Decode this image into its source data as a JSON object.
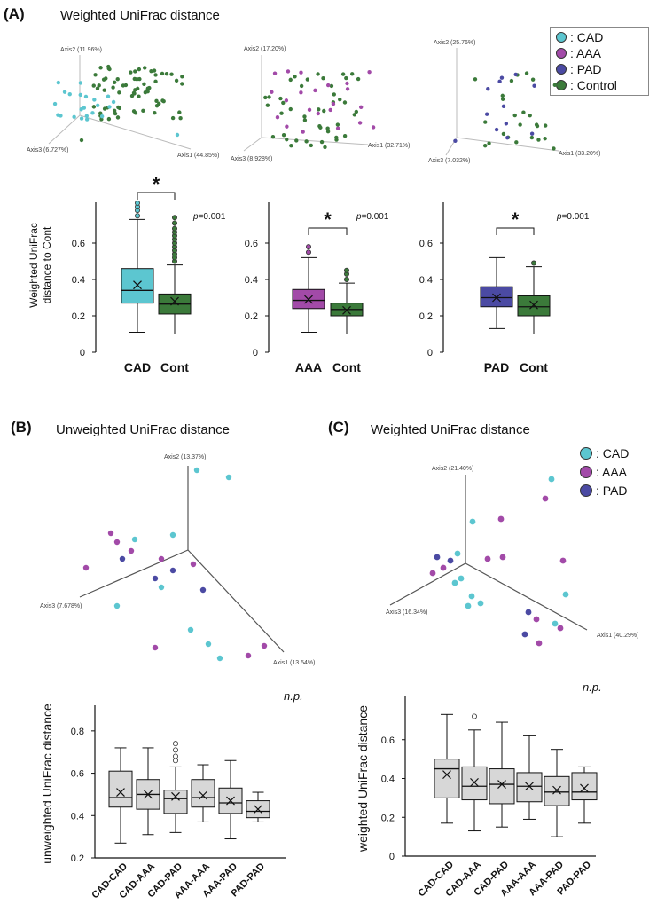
{
  "colors": {
    "CAD": "#5cc6d0",
    "AAA": "#a24aa8",
    "PAD": "#4b4aa3",
    "Control": "#3b7a3a",
    "gray": "#d7d7d7",
    "Cont": "#3b7a3a"
  },
  "panelA": {
    "letter": "(A)",
    "title": "Weighted UniFrac distance",
    "legend": [
      {
        "key": "CAD",
        "label": ": CAD"
      },
      {
        "key": "AAA",
        "label": ": AAA"
      },
      {
        "key": "PAD",
        "label": ": PAD"
      },
      {
        "key": "Control",
        "label": ": Control"
      }
    ],
    "pcoa": [
      {
        "axis1": "Axis1 (44.85%)",
        "axis2": "Axis2 (11.96%)",
        "axis3": "Axis3 (6.727%)"
      },
      {
        "axis1": "Axis1 (32.71%)",
        "axis2": "Axis2 (17.20%)",
        "axis3": "Axis3 (8.928%)"
      },
      {
        "axis1": "Axis1 (33.20%)",
        "axis2": "Axis2 (25.76%)",
        "axis3": "Axis3 (7.032%)"
      }
    ],
    "ylabel_line1": "Weighted UniFrac",
    "ylabel_line2": "distance  to Cont",
    "star": "*",
    "pvalue_prefix": "p",
    "pvalue_suffix": "=0.001"
  },
  "panelB": {
    "letter": "(B)",
    "title": "Unweighted UniFrac distance",
    "axis1": "Axis1 (13.54%)",
    "axis2": "Axis2 (13.37%)",
    "axis3": "Axis3 (7.678%)",
    "np": "n.p."
  },
  "panelC": {
    "letter": "(C)",
    "title": "Weighted UniFrac distance",
    "axis1": "Axis1 (40.29%)",
    "axis2": "Axis2 (21.40%)",
    "axis3": "Axis3 (16.34%)",
    "np": "n.p.",
    "legend": [
      {
        "key": "CAD",
        "label": ": CAD"
      },
      {
        "key": "AAA",
        "label": ": AAA"
      },
      {
        "key": "PAD",
        "label": ": PAD"
      }
    ]
  },
  "chart_data": [
    {
      "type": "box",
      "id": "A-CAD",
      "categories": [
        "CAD",
        "Cont"
      ],
      "ylim": [
        0,
        0.8
      ],
      "yticks": [
        0,
        0.2,
        0.4,
        0.6
      ],
      "pvalue": "p=0.001",
      "series": [
        {
          "name": "CAD",
          "color": "CAD",
          "min": 0.11,
          "q1": 0.27,
          "median": 0.34,
          "q3": 0.46,
          "max": 0.73,
          "mean": 0.37,
          "outliers": [
            0.75,
            0.78,
            0.8,
            0.82
          ]
        },
        {
          "name": "Cont",
          "color": "Cont",
          "min": 0.1,
          "q1": 0.21,
          "median": 0.265,
          "q3": 0.32,
          "max": 0.48,
          "mean": 0.28,
          "outliers": [
            0.5,
            0.52,
            0.54,
            0.56,
            0.58,
            0.6,
            0.62,
            0.64,
            0.66,
            0.68,
            0.71,
            0.74
          ]
        }
      ]
    },
    {
      "type": "box",
      "id": "A-AAA",
      "categories": [
        "AAA",
        "Cont"
      ],
      "ylim": [
        0,
        0.8
      ],
      "yticks": [
        0,
        0.2,
        0.4,
        0.6
      ],
      "pvalue": "p=0.001",
      "series": [
        {
          "name": "AAA",
          "color": "AAA",
          "min": 0.11,
          "q1": 0.24,
          "median": 0.285,
          "q3": 0.345,
          "max": 0.52,
          "mean": 0.29,
          "outliers": [
            0.55,
            0.58
          ]
        },
        {
          "name": "Cont",
          "color": "Cont",
          "min": 0.1,
          "q1": 0.2,
          "median": 0.235,
          "q3": 0.27,
          "max": 0.38,
          "mean": 0.23,
          "outliers": [
            0.4,
            0.43,
            0.45
          ]
        }
      ]
    },
    {
      "type": "box",
      "id": "A-PAD",
      "categories": [
        "PAD",
        "Cont"
      ],
      "ylim": [
        0,
        0.8
      ],
      "yticks": [
        0,
        0.2,
        0.4,
        0.6
      ],
      "pvalue": "p=0.001",
      "series": [
        {
          "name": "PAD",
          "color": "PAD",
          "min": 0.13,
          "q1": 0.25,
          "median": 0.3,
          "q3": 0.36,
          "max": 0.52,
          "mean": 0.3,
          "outliers": []
        },
        {
          "name": "Cont",
          "color": "Cont",
          "min": 0.1,
          "q1": 0.2,
          "median": 0.25,
          "q3": 0.31,
          "max": 0.47,
          "mean": 0.26,
          "outliers": [
            0.49
          ]
        }
      ]
    },
    {
      "type": "box",
      "id": "B",
      "categories": [
        "CAD-CAD",
        "CAD-AAA",
        "CAD-PAD",
        "AAA-AAA",
        "AAA-PAD",
        "PAD-PAD"
      ],
      "ylim": [
        0.2,
        0.9
      ],
      "yticks": [
        0.2,
        0.4,
        0.6,
        0.8
      ],
      "ylabel": "unweighted UniFrac distance",
      "series": [
        {
          "name": "CAD-CAD",
          "min": 0.27,
          "q1": 0.44,
          "median": 0.485,
          "q3": 0.61,
          "max": 0.72,
          "mean": 0.51,
          "outliers": []
        },
        {
          "name": "CAD-AAA",
          "min": 0.31,
          "q1": 0.43,
          "median": 0.5,
          "q3": 0.57,
          "max": 0.72,
          "mean": 0.5,
          "outliers": []
        },
        {
          "name": "CAD-PAD",
          "min": 0.32,
          "q1": 0.41,
          "median": 0.48,
          "q3": 0.52,
          "max": 0.63,
          "mean": 0.49,
          "outliers": [
            0.66,
            0.68,
            0.71,
            0.74
          ]
        },
        {
          "name": "AAA-AAA",
          "min": 0.37,
          "q1": 0.44,
          "median": 0.485,
          "q3": 0.57,
          "max": 0.64,
          "mean": 0.495,
          "outliers": []
        },
        {
          "name": "AAA-PAD",
          "min": 0.29,
          "q1": 0.41,
          "median": 0.46,
          "q3": 0.53,
          "max": 0.66,
          "mean": 0.47,
          "outliers": []
        },
        {
          "name": "PAD-PAD",
          "min": 0.37,
          "q1": 0.39,
          "median": 0.42,
          "q3": 0.47,
          "max": 0.51,
          "mean": 0.43,
          "outliers": []
        }
      ]
    },
    {
      "type": "box",
      "id": "C",
      "categories": [
        "CAD-CAD",
        "CAD-AAA",
        "CAD-PAD",
        "AAA-AAA",
        "AAA-PAD",
        "PAD-PAD"
      ],
      "ylim": [
        0,
        0.8
      ],
      "yticks": [
        0,
        0.2,
        0.4,
        0.6
      ],
      "ylabel": "weighted UniFrac distance",
      "series": [
        {
          "name": "CAD-CAD",
          "min": 0.17,
          "q1": 0.3,
          "median": 0.45,
          "q3": 0.5,
          "max": 0.73,
          "mean": 0.42,
          "outliers": []
        },
        {
          "name": "CAD-AAA",
          "min": 0.13,
          "q1": 0.29,
          "median": 0.36,
          "q3": 0.46,
          "max": 0.65,
          "mean": 0.38,
          "outliers": [
            0.72
          ]
        },
        {
          "name": "CAD-PAD",
          "min": 0.15,
          "q1": 0.27,
          "median": 0.37,
          "q3": 0.45,
          "max": 0.69,
          "mean": 0.37,
          "outliers": []
        },
        {
          "name": "AAA-AAA",
          "min": 0.19,
          "q1": 0.28,
          "median": 0.36,
          "q3": 0.43,
          "max": 0.62,
          "mean": 0.36,
          "outliers": []
        },
        {
          "name": "AAA-PAD",
          "min": 0.1,
          "q1": 0.26,
          "median": 0.33,
          "q3": 0.41,
          "max": 0.55,
          "mean": 0.34,
          "outliers": []
        },
        {
          "name": "PAD-PAD",
          "min": 0.17,
          "q1": 0.29,
          "median": 0.33,
          "q3": 0.43,
          "max": 0.46,
          "mean": 0.35,
          "outliers": []
        }
      ]
    }
  ]
}
